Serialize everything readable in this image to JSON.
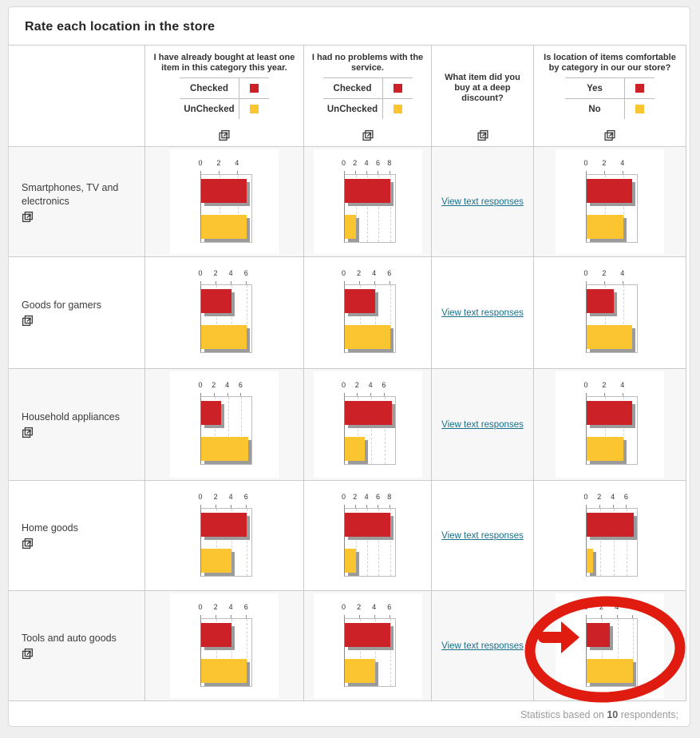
{
  "title": "Rate each location in the store",
  "link_label": "View text responses",
  "colors": {
    "checked": "#cc2127",
    "unchecked": "#fbc431",
    "link": "#19708a",
    "annotation": "#e01c10",
    "row_alt_bg": "#f7f7f7"
  },
  "header": {
    "columns": [
      {
        "key": "q1",
        "type": "chart",
        "question": "I have already bought at least one item in this category this year.",
        "legend": [
          {
            "label": "Checked",
            "color": "#cc2127"
          },
          {
            "label": "UnChecked",
            "color": "#fbc431"
          }
        ]
      },
      {
        "key": "q2",
        "type": "chart",
        "question": "I had no problems with the service.",
        "legend": [
          {
            "label": "Checked",
            "color": "#cc2127"
          },
          {
            "label": "UnChecked",
            "color": "#fbc431"
          }
        ]
      },
      {
        "key": "q3",
        "type": "text",
        "question": "What item did you buy at a deep discount?",
        "legend": []
      },
      {
        "key": "q4",
        "type": "chart",
        "question": "Is location of items comfortable by category in our our store?",
        "legend": [
          {
            "label": "Yes",
            "color": "#cc2127"
          },
          {
            "label": "No",
            "color": "#fbc431"
          }
        ]
      }
    ]
  },
  "rows": [
    {
      "label": "Smartphones, TV and electronics",
      "charts": {
        "q1": {
          "ticks": [
            0,
            2,
            4
          ],
          "axis_max": 5.5,
          "checked": 5,
          "unchecked": 5
        },
        "q2": {
          "ticks": [
            0,
            2,
            4,
            6,
            8
          ],
          "axis_max": 8.8,
          "checked": 8,
          "unchecked": 2
        },
        "q4": {
          "ticks": [
            0,
            2,
            4
          ],
          "axis_max": 5.5,
          "checked": 5,
          "unchecked": 4
        }
      }
    },
    {
      "label": "Goods for gamers",
      "charts": {
        "q1": {
          "ticks": [
            0,
            2,
            4,
            6
          ],
          "axis_max": 6.6,
          "checked": 4,
          "unchecked": 6
        },
        "q2": {
          "ticks": [
            0,
            2,
            4,
            6
          ],
          "axis_max": 6.6,
          "checked": 4,
          "unchecked": 6
        },
        "q4": {
          "ticks": [
            0,
            2,
            4
          ],
          "axis_max": 5.5,
          "checked": 3,
          "unchecked": 5
        }
      }
    },
    {
      "label": "Household appliances",
      "charts": {
        "q1": {
          "ticks": [
            0,
            2,
            4,
            6
          ],
          "axis_max": 7.5,
          "checked": 3,
          "unchecked": 7
        },
        "q2": {
          "ticks": [
            0,
            2,
            4,
            6
          ],
          "axis_max": 7.5,
          "checked": 7,
          "unchecked": 3
        },
        "q4": {
          "ticks": [
            0,
            2,
            4
          ],
          "axis_max": 5.5,
          "checked": 5,
          "unchecked": 4
        }
      }
    },
    {
      "label": "Home goods",
      "charts": {
        "q1": {
          "ticks": [
            0,
            2,
            4,
            6
          ],
          "axis_max": 6.6,
          "checked": 6,
          "unchecked": 4
        },
        "q2": {
          "ticks": [
            0,
            2,
            4,
            6,
            8
          ],
          "axis_max": 8.8,
          "checked": 8,
          "unchecked": 2
        },
        "q4": {
          "ticks": [
            0,
            2,
            4,
            6
          ],
          "axis_max": 7.5,
          "checked": 7,
          "unchecked": 1
        }
      }
    },
    {
      "label": "Tools and auto goods",
      "charts": {
        "q1": {
          "ticks": [
            0,
            2,
            4,
            6
          ],
          "axis_max": 6.6,
          "checked": 4,
          "unchecked": 6
        },
        "q2": {
          "ticks": [
            0,
            2,
            4,
            6
          ],
          "axis_max": 6.6,
          "checked": 6,
          "unchecked": 4
        },
        "q4": {
          "ticks": [
            0,
            2,
            4,
            6
          ],
          "axis_max": 6.5,
          "checked": 3,
          "unchecked": 6
        }
      }
    }
  ],
  "footer": {
    "prefix": "Statistics based on ",
    "count": "10",
    "suffix": " respondents;"
  },
  "annotation": {
    "shape": "ellipse-with-arrow",
    "color": "#e01c10",
    "target_row": "Tools and auto goods",
    "target_column": "q4"
  }
}
